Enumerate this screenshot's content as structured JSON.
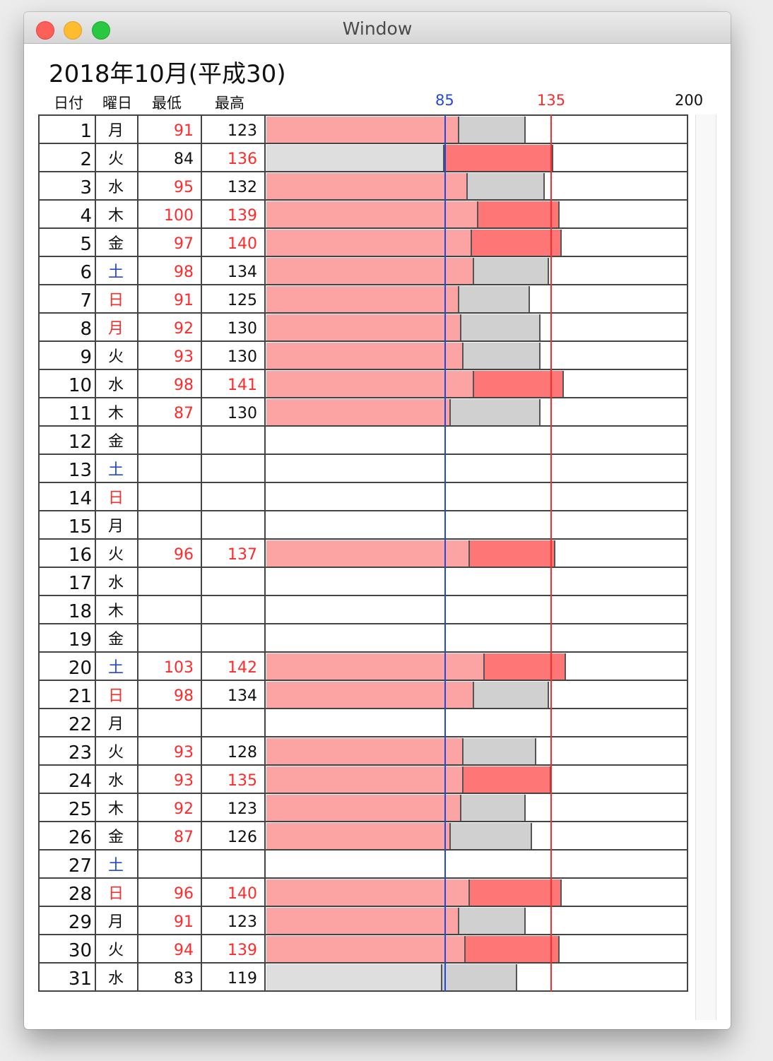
{
  "window": {
    "title": "Window"
  },
  "page_title": "2018年10月(平成30)",
  "headers": {
    "date": "日付",
    "weekday": "曜日",
    "min": "最低",
    "max": "最高"
  },
  "scale": {
    "low": 85,
    "high": 135,
    "max": 200
  },
  "colors": {
    "low_line": "#2248e0",
    "high_line": "#ff2a2a",
    "bar_pink": "#fca3a3",
    "bar_red": "#ff7676",
    "bar_gray": "#d0d0d0",
    "bar_lightgray": "#dedede"
  },
  "rows": [
    {
      "day": "1",
      "wd": "月",
      "wd_color": "black",
      "lo": "91",
      "hi": "123"
    },
    {
      "day": "2",
      "wd": "火",
      "wd_color": "black",
      "lo": "84",
      "hi": "136"
    },
    {
      "day": "3",
      "wd": "水",
      "wd_color": "black",
      "lo": "95",
      "hi": "132"
    },
    {
      "day": "4",
      "wd": "木",
      "wd_color": "black",
      "lo": "100",
      "hi": "139"
    },
    {
      "day": "5",
      "wd": "金",
      "wd_color": "black",
      "lo": "97",
      "hi": "140"
    },
    {
      "day": "6",
      "wd": "土",
      "wd_color": "blue",
      "lo": "98",
      "hi": "134"
    },
    {
      "day": "7",
      "wd": "日",
      "wd_color": "red",
      "lo": "91",
      "hi": "125"
    },
    {
      "day": "8",
      "wd": "月",
      "wd_color": "red",
      "lo": "92",
      "hi": "130"
    },
    {
      "day": "9",
      "wd": "火",
      "wd_color": "black",
      "lo": "93",
      "hi": "130"
    },
    {
      "day": "10",
      "wd": "水",
      "wd_color": "black",
      "lo": "98",
      "hi": "141"
    },
    {
      "day": "11",
      "wd": "木",
      "wd_color": "black",
      "lo": "87",
      "hi": "130"
    },
    {
      "day": "12",
      "wd": "金",
      "wd_color": "black",
      "lo": "",
      "hi": ""
    },
    {
      "day": "13",
      "wd": "土",
      "wd_color": "blue",
      "lo": "",
      "hi": ""
    },
    {
      "day": "14",
      "wd": "日",
      "wd_color": "red",
      "lo": "",
      "hi": ""
    },
    {
      "day": "15",
      "wd": "月",
      "wd_color": "black",
      "lo": "",
      "hi": ""
    },
    {
      "day": "16",
      "wd": "火",
      "wd_color": "black",
      "lo": "96",
      "hi": "137"
    },
    {
      "day": "17",
      "wd": "水",
      "wd_color": "black",
      "lo": "",
      "hi": ""
    },
    {
      "day": "18",
      "wd": "木",
      "wd_color": "black",
      "lo": "",
      "hi": ""
    },
    {
      "day": "19",
      "wd": "金",
      "wd_color": "black",
      "lo": "",
      "hi": ""
    },
    {
      "day": "20",
      "wd": "土",
      "wd_color": "blue",
      "lo": "103",
      "hi": "142"
    },
    {
      "day": "21",
      "wd": "日",
      "wd_color": "red",
      "lo": "98",
      "hi": "134"
    },
    {
      "day": "22",
      "wd": "月",
      "wd_color": "black",
      "lo": "",
      "hi": ""
    },
    {
      "day": "23",
      "wd": "火",
      "wd_color": "black",
      "lo": "93",
      "hi": "128"
    },
    {
      "day": "24",
      "wd": "水",
      "wd_color": "black",
      "lo": "93",
      "hi": "135"
    },
    {
      "day": "25",
      "wd": "木",
      "wd_color": "black",
      "lo": "92",
      "hi": "123"
    },
    {
      "day": "26",
      "wd": "金",
      "wd_color": "black",
      "lo": "87",
      "hi": "126"
    },
    {
      "day": "27",
      "wd": "土",
      "wd_color": "blue",
      "lo": "",
      "hi": ""
    },
    {
      "day": "28",
      "wd": "日",
      "wd_color": "red",
      "lo": "96",
      "hi": "140"
    },
    {
      "day": "29",
      "wd": "月",
      "wd_color": "black",
      "lo": "91",
      "hi": "123"
    },
    {
      "day": "30",
      "wd": "火",
      "wd_color": "black",
      "lo": "94",
      "hi": "139"
    },
    {
      "day": "31",
      "wd": "水",
      "wd_color": "black",
      "lo": "83",
      "hi": "119"
    }
  ]
}
